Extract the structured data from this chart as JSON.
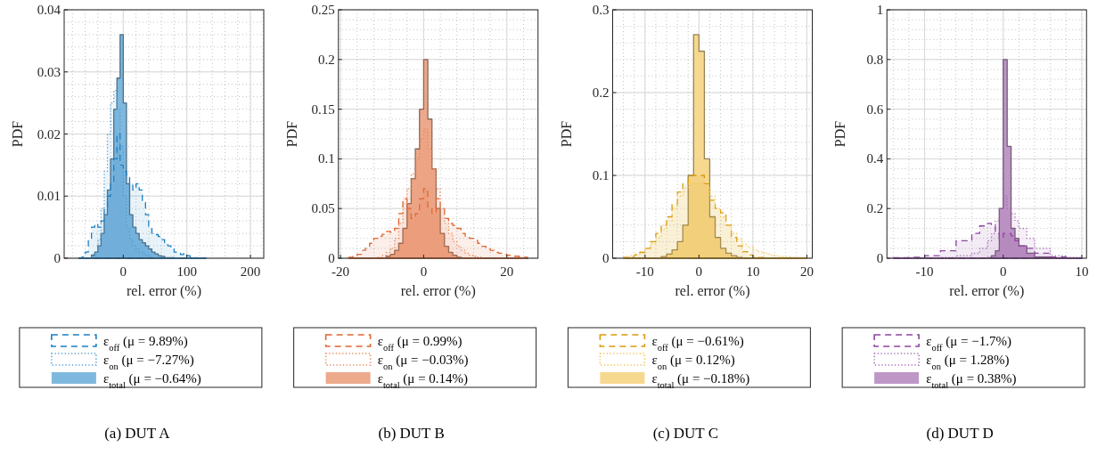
{
  "chart_data": [
    {
      "type": "histogram",
      "title": "(a) DUT A",
      "xlabel": "rel. error (%)",
      "ylabel": "PDF",
      "xlim": [
        -93,
        221
      ],
      "xticks": [
        0,
        100,
        200
      ],
      "ylim": [
        0,
        0.04
      ],
      "yticks": [
        0,
        0.01,
        0.02,
        0.03,
        0.04
      ],
      "grid": true,
      "legend": "bottom",
      "bins": [
        -70,
        -65,
        -60,
        -55,
        -50,
        -45,
        -40,
        -35,
        -30,
        -25,
        -20,
        -15,
        -10,
        -5,
        0,
        5,
        10,
        15,
        20,
        25,
        30,
        35,
        40,
        45,
        50,
        55,
        60,
        65,
        70,
        75,
        80,
        85,
        90,
        95,
        100,
        105,
        110,
        115,
        120,
        125,
        130
      ],
      "series": [
        {
          "name": "ε$_{off}$ (μ = 9.89%)",
          "color": "#1a7fc4",
          "line_style": "dashed",
          "values": [
            0,
            0.0002,
            0.001,
            0.003,
            0.005,
            0.0055,
            0.005,
            0.006,
            0.008,
            0.01,
            0.012,
            0.016,
            0.02,
            0.015,
            0.014,
            0.013,
            0.012,
            0.011,
            0.012,
            0.011,
            0.009,
            0.007,
            0.005,
            0.004,
            0.0038,
            0.0035,
            0.003,
            0.0025,
            0.002,
            0.0015,
            0.001,
            0.0008,
            0.0006,
            0.0008,
            0.0004,
            0.0002,
            0.0001,
            0,
            0,
            0
          ]
        },
        {
          "name": "ε$_{on}$ (μ = −7.27%)",
          "color": "#4a9ad3",
          "line_style": "dotted",
          "values": [
            0,
            0,
            0,
            0,
            0.0003,
            0.001,
            0.003,
            0.008,
            0.014,
            0.02,
            0.025,
            0.027,
            0.024,
            0.018,
            0.01,
            0.005,
            0.003,
            0.002,
            0.0015,
            0.001,
            0.0008,
            0.0005,
            0.0003,
            0.0001,
            0,
            0,
            0,
            0,
            0,
            0,
            0,
            0,
            0,
            0,
            0,
            0,
            0,
            0,
            0,
            0
          ]
        },
        {
          "name": "ε$_{total}$ (μ = −0.64%)",
          "color": "#7fb8de",
          "line_style": "solid",
          "values": [
            0,
            0,
            0,
            0,
            0.0005,
            0.001,
            0.002,
            0.004,
            0.007,
            0.011,
            0.016,
            0.024,
            0.029,
            0.036,
            0.025,
            0.012,
            0.007,
            0.005,
            0.004,
            0.003,
            0.0025,
            0.002,
            0.0015,
            0.001,
            0.0007,
            0.0004,
            0.0003,
            0.0001,
            0.0001,
            0.0001,
            0,
            0,
            0,
            0,
            0,
            0,
            0,
            0,
            0,
            0
          ]
        }
      ]
    },
    {
      "type": "histogram",
      "title": "(b) DUT B",
      "xlabel": "rel. error (%)",
      "ylabel": "PDF",
      "xlim": [
        -20.5,
        27.5
      ],
      "xticks": [
        -20,
        0,
        20
      ],
      "ylim": [
        0,
        0.25
      ],
      "yticks": [
        0,
        0.05,
        0.1,
        0.15,
        0.2,
        0.25
      ],
      "grid": true,
      "legend": "bottom",
      "bins": [
        -18,
        -17,
        -16,
        -15,
        -14,
        -13,
        -12,
        -11,
        -10,
        -9,
        -8,
        -7,
        -6,
        -5,
        -4,
        -3,
        -2,
        -1,
        0,
        1,
        2,
        3,
        4,
        5,
        6,
        7,
        8,
        9,
        10,
        11,
        12,
        13,
        14,
        15,
        16,
        17,
        18,
        19,
        20,
        21,
        22,
        23,
        24,
        25
      ],
      "series": [
        {
          "name": "ε$_{off}$ (μ = 0.99%)",
          "color": "#e0662f",
          "line_style": "dashed",
          "values": [
            0.001,
            0.002,
            0.004,
            0.008,
            0.01,
            0.015,
            0.02,
            0.022,
            0.024,
            0.027,
            0.026,
            0.03,
            0.045,
            0.06,
            0.05,
            0.04,
            0.045,
            0.06,
            0.07,
            0.05,
            0.045,
            0.06,
            0.05,
            0.04,
            0.035,
            0.033,
            0.03,
            0.025,
            0.022,
            0.02,
            0.018,
            0.015,
            0.012,
            0.01,
            0.008,
            0.006,
            0.005,
            0.004,
            0.003,
            0.002,
            0.002,
            0.001,
            0.001
          ]
        },
        {
          "name": "ε$_{on}$ (μ = −0.03%)",
          "color": "#e8844f",
          "line_style": "dotted",
          "values": [
            0,
            0,
            0,
            0,
            0,
            0,
            0,
            0.001,
            0.003,
            0.006,
            0.01,
            0.02,
            0.035,
            0.055,
            0.07,
            0.085,
            0.1,
            0.12,
            0.13,
            0.11,
            0.09,
            0.07,
            0.05,
            0.035,
            0.025,
            0.017,
            0.012,
            0.008,
            0.005,
            0.003,
            0.002,
            0.001,
            0,
            0,
            0,
            0,
            0,
            0,
            0,
            0,
            0,
            0,
            0
          ]
        },
        {
          "name": "ε$_{total}$ (μ = 0.14%)",
          "color": "#eca98c",
          "line_style": "solid",
          "values": [
            0,
            0,
            0,
            0,
            0,
            0,
            0,
            0,
            0,
            0.002,
            0.004,
            0.008,
            0.015,
            0.03,
            0.055,
            0.08,
            0.11,
            0.15,
            0.2,
            0.14,
            0.09,
            0.05,
            0.025,
            0.012,
            0.006,
            0.003,
            0.001,
            0,
            0,
            0,
            0,
            0,
            0,
            0,
            0,
            0,
            0,
            0,
            0,
            0,
            0,
            0,
            0
          ]
        }
      ]
    },
    {
      "type": "histogram",
      "title": "(c) DUT C",
      "xlabel": "rel. error (%)",
      "ylabel": "PDF",
      "xlim": [
        -16,
        21
      ],
      "xticks": [
        -10,
        0,
        10,
        20
      ],
      "ylim": [
        0,
        0.3
      ],
      "yticks": [
        0,
        0.1,
        0.2,
        0.3
      ],
      "grid": true,
      "legend": "bottom",
      "bins": [
        -14,
        -13,
        -12,
        -11,
        -10,
        -9,
        -8,
        -7,
        -6,
        -5,
        -4,
        -3,
        -2,
        -1,
        0,
        1,
        2,
        3,
        4,
        5,
        6,
        7,
        8,
        9,
        10,
        11,
        12,
        13,
        14,
        15,
        16,
        17,
        18,
        19,
        20
      ],
      "series": [
        {
          "name": "ε$_{off}$ (μ = −0.61%)",
          "color": "#d99a0c",
          "line_style": "dashed",
          "values": [
            0.001,
            0.002,
            0.004,
            0.007,
            0.012,
            0.02,
            0.03,
            0.04,
            0.05,
            0.065,
            0.08,
            0.09,
            0.1,
            0.1,
            0.1,
            0.09,
            0.07,
            0.06,
            0.055,
            0.04,
            0.025,
            0.015,
            0.008,
            0.004,
            0.002,
            0.001,
            0,
            0,
            0,
            0,
            0,
            0,
            0,
            0
          ]
        },
        {
          "name": "ε$_{on}$ (μ = 0.12%)",
          "color": "#f0c04a",
          "line_style": "dotted",
          "values": [
            0.002,
            0.003,
            0.005,
            0.008,
            0.012,
            0.018,
            0.025,
            0.035,
            0.045,
            0.06,
            0.075,
            0.085,
            0.09,
            0.09,
            0.09,
            0.085,
            0.075,
            0.06,
            0.05,
            0.04,
            0.03,
            0.023,
            0.017,
            0.013,
            0.01,
            0.008,
            0.006,
            0.004,
            0.003,
            0.002,
            0.002,
            0.001,
            0.001,
            0
          ]
        },
        {
          "name": "ε$_{total}$ (μ = −0.18%)",
          "color": "#f6d88f",
          "line_style": "solid",
          "values": [
            0,
            0,
            0,
            0,
            0,
            0,
            0,
            0.002,
            0.005,
            0.01,
            0.02,
            0.04,
            0.1,
            0.27,
            0.25,
            0.12,
            0.05,
            0.025,
            0.012,
            0.006,
            0.003,
            0.001,
            0,
            0,
            0,
            0,
            0,
            0,
            0,
            0,
            0,
            0,
            0,
            0
          ]
        }
      ]
    },
    {
      "type": "histogram",
      "title": "(d) DUT D",
      "xlabel": "rel. error (%)",
      "ylabel": "PDF",
      "xlim": [
        -14.8,
        10.6
      ],
      "xticks": [
        -10,
        0,
        10
      ],
      "ylim": [
        0,
        1
      ],
      "yticks": [
        0,
        0.2,
        0.4,
        0.6,
        0.8,
        1
      ],
      "grid": true,
      "legend": "bottom",
      "bins": [
        -14,
        -12,
        -10,
        -8,
        -6,
        -4,
        -3,
        -2,
        -1.5,
        -1,
        -0.5,
        0,
        0.5,
        1,
        1.5,
        2,
        3,
        4,
        6,
        8,
        10
      ],
      "series": [
        {
          "name": "ε$_{off}$ (μ = −1.7%)",
          "color": "#8e44a0",
          "line_style": "dashed",
          "values": [
            0.002,
            0.004,
            0.01,
            0.03,
            0.07,
            0.1,
            0.13,
            0.14,
            0.13,
            0.1,
            0.08,
            0.1,
            0.1,
            0.09,
            0.07,
            0.05,
            0.04,
            0.02,
            0.005,
            0.001
          ]
        },
        {
          "name": "ε$_{on}$ (μ = 1.28%)",
          "color": "#a266b3",
          "line_style": "dotted",
          "values": [
            0,
            0,
            0.001,
            0.003,
            0.01,
            0.02,
            0.04,
            0.07,
            0.1,
            0.15,
            0.2,
            0.25,
            0.2,
            0.18,
            0.15,
            0.12,
            0.08,
            0.04,
            0.01,
            0.003
          ]
        },
        {
          "name": "ε$_{total}$ (μ = 0.38%)",
          "color": "#be97c6",
          "line_style": "solid",
          "values": [
            0,
            0,
            0,
            0,
            0,
            0,
            0,
            0.002,
            0.01,
            0.03,
            0.2,
            0.8,
            0.45,
            0.12,
            0.08,
            0.05,
            0.02,
            0.005,
            0.001,
            0
          ]
        }
      ]
    }
  ]
}
